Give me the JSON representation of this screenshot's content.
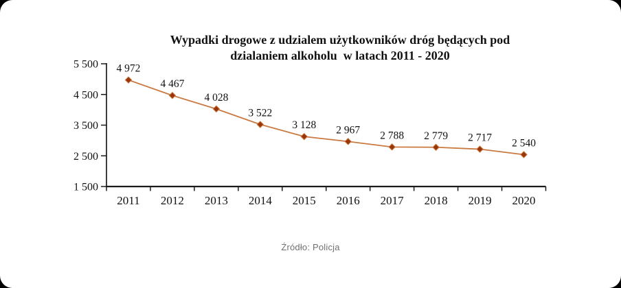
{
  "page": {
    "background_color": "#000000",
    "card_color": "#ffffff"
  },
  "title": {
    "line1": "Wypadki drogowe z udzialem użytkowników dróg będących pod",
    "line2": "dzialaniem alkoholu  w latach 2011 - 2020"
  },
  "source_note": "Źródło: Policja",
  "chart_data": {
    "type": "line",
    "title": "Wypadki drogowe z udzialem użytkowników dróg będących pod dzialaniem alkoholu w latach 2011 - 2020",
    "categories": [
      "2011",
      "2012",
      "2013",
      "2014",
      "2015",
      "2016",
      "2017",
      "2018",
      "2019",
      "2020"
    ],
    "series": [
      {
        "name": "Wypadki drogowe z udzialem użytkowników dróg pod dzialaniem alkoholu",
        "values": [
          4972,
          4467,
          4028,
          3522,
          3128,
          2967,
          2788,
          2779,
          2717,
          2540
        ],
        "value_labels": [
          "4 972",
          "4 467",
          "4 028",
          "3 522",
          "3 128",
          "2 967",
          "2 788",
          "2 779",
          "2 717",
          "2 540"
        ]
      }
    ],
    "xlabel": "",
    "ylabel": "",
    "ylim": [
      1500,
      5500
    ],
    "y_ticks": [
      {
        "value": 5500,
        "label": "5 500"
      },
      {
        "value": 4500,
        "label": "4 500"
      },
      {
        "value": 3500,
        "label": "3 500"
      },
      {
        "value": 2500,
        "label": "2 500"
      },
      {
        "value": 1500,
        "label": "1 500"
      }
    ],
    "grid": false,
    "legend_position": "none",
    "marker": "diamond",
    "line_color": "#c9793f",
    "marker_fill_color": "#993508",
    "marker_stroke_color": "#c9793f",
    "axis_color": "#1a1a1a",
    "label_color": "#111111",
    "source": "Źródło: Policja"
  }
}
